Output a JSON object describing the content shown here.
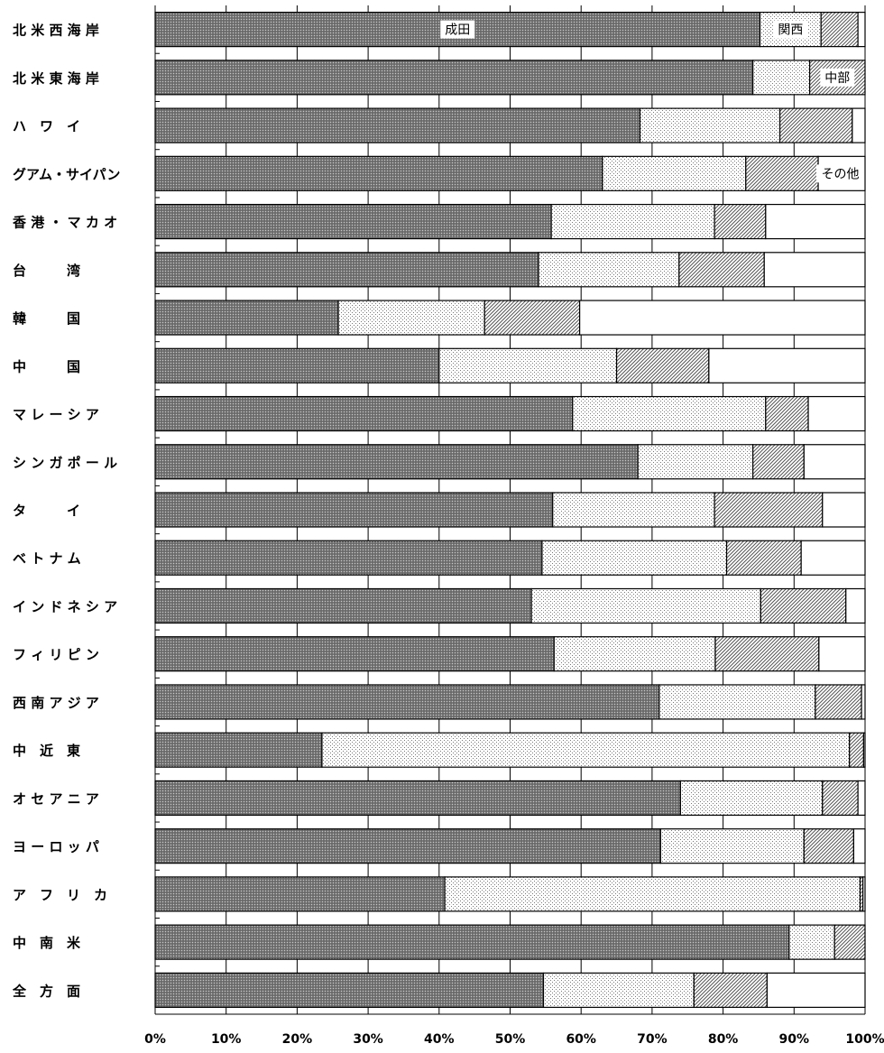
{
  "chart_data": {
    "type": "bar",
    "orientation": "horizontal",
    "stacked": true,
    "categories": [
      "北 米 西 海 岸",
      "北 米 東 海 岸",
      "ハ　ワ　イ",
      "グアム・サイパン",
      "香 港 ・ マ カ オ",
      "台　　　湾",
      "韓　　　国",
      "中　　　国",
      "マ レ ー シ ア",
      "シ ン ガ ポ ー ル",
      "タ　　　イ",
      "ベ ト ナ ム",
      "イ ン ド ネ シ ア",
      "フ ィ リ ピ ン",
      "西 南 ア ジ ア",
      "中　近　東",
      "オ セ ア ニ ア",
      "ヨ ー ロ ッ パ",
      "ア　フ　リ　カ",
      "中　南　米",
      "全　方　面"
    ],
    "series": [
      {
        "name": "成田",
        "values": [
          85.2,
          84.2,
          68.3,
          63.0,
          55.8,
          54.0,
          25.8,
          40.0,
          58.8,
          68.0,
          56.0,
          54.5,
          53.0,
          56.2,
          71.0,
          23.5,
          74.0,
          71.2,
          40.8,
          89.3,
          54.7
        ]
      },
      {
        "name": "関西",
        "values": [
          8.6,
          8.0,
          19.7,
          20.2,
          23.0,
          19.8,
          20.6,
          25.0,
          27.2,
          16.2,
          22.8,
          26.0,
          32.3,
          22.7,
          22.0,
          74.3,
          20.0,
          20.2,
          58.5,
          6.4,
          21.2
        ]
      },
      {
        "name": "中部",
        "values": [
          5.2,
          7.8,
          10.2,
          10.2,
          7.2,
          12.0,
          13.4,
          13.0,
          6.0,
          7.2,
          15.2,
          10.5,
          12.0,
          14.6,
          6.5,
          2.0,
          5.0,
          7.0,
          0.4,
          4.3,
          10.3
        ]
      },
      {
        "name": "その他",
        "values": [
          1.0,
          0.0,
          1.8,
          6.6,
          14.0,
          14.2,
          40.2,
          22.0,
          8.0,
          8.6,
          6.0,
          9.0,
          2.7,
          6.5,
          0.5,
          0.2,
          1.0,
          1.6,
          0.3,
          0.0,
          13.8
        ]
      }
    ],
    "xlim": [
      0,
      100
    ],
    "x_ticks": [
      "0%",
      "10%",
      "20%",
      "30%",
      "40%",
      "50%",
      "60%",
      "70%",
      "80%",
      "90%",
      "100%"
    ],
    "in_chart_labels": [
      {
        "series": "成田",
        "category_index": 0
      },
      {
        "series": "関西",
        "category_index": 0
      },
      {
        "series": "中部",
        "category_index": 1
      },
      {
        "series": "その他",
        "category_index": 3
      }
    ],
    "grid": "vertical",
    "legend": "none"
  }
}
